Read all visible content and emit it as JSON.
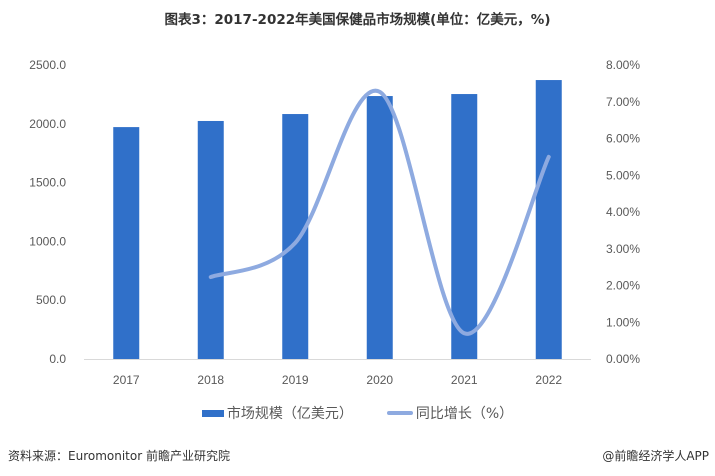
{
  "chart_data": {
    "type": "bar+line",
    "title": "图表3：2017-2022年美国保健品市场规模(单位：亿美元，%)",
    "categories": [
      "2017",
      "2018",
      "2019",
      "2020",
      "2021",
      "2022"
    ],
    "series": [
      {
        "name": "市场规模（亿美元）",
        "type": "bar",
        "axis": "left",
        "color": "#3070c9",
        "values": [
          1972,
          2024,
          2083,
          2236,
          2253,
          2372
        ]
      },
      {
        "name": "同比增长（%）",
        "type": "line",
        "axis": "right",
        "color": "#8eaae0",
        "smooth": true,
        "values": [
          null,
          2.23,
          3.16,
          7.27,
          0.7,
          5.5
        ]
      }
    ],
    "y_left": {
      "range": [
        0,
        2500
      ],
      "ticks": [
        "0.0",
        "500.0",
        "1000.0",
        "1500.0",
        "2000.0",
        "2500.0"
      ]
    },
    "y_right": {
      "range": [
        0,
        8
      ],
      "ticks": [
        "0.00%",
        "1.00%",
        "2.00%",
        "3.00%",
        "4.00%",
        "5.00%",
        "6.00%",
        "7.00%",
        "8.00%"
      ]
    },
    "grid": false,
    "legend_position": "bottom"
  },
  "footer": {
    "source": "资料来源：Euromonitor 前瞻产业研究院",
    "credit": "@前瞻经济学人APP"
  }
}
